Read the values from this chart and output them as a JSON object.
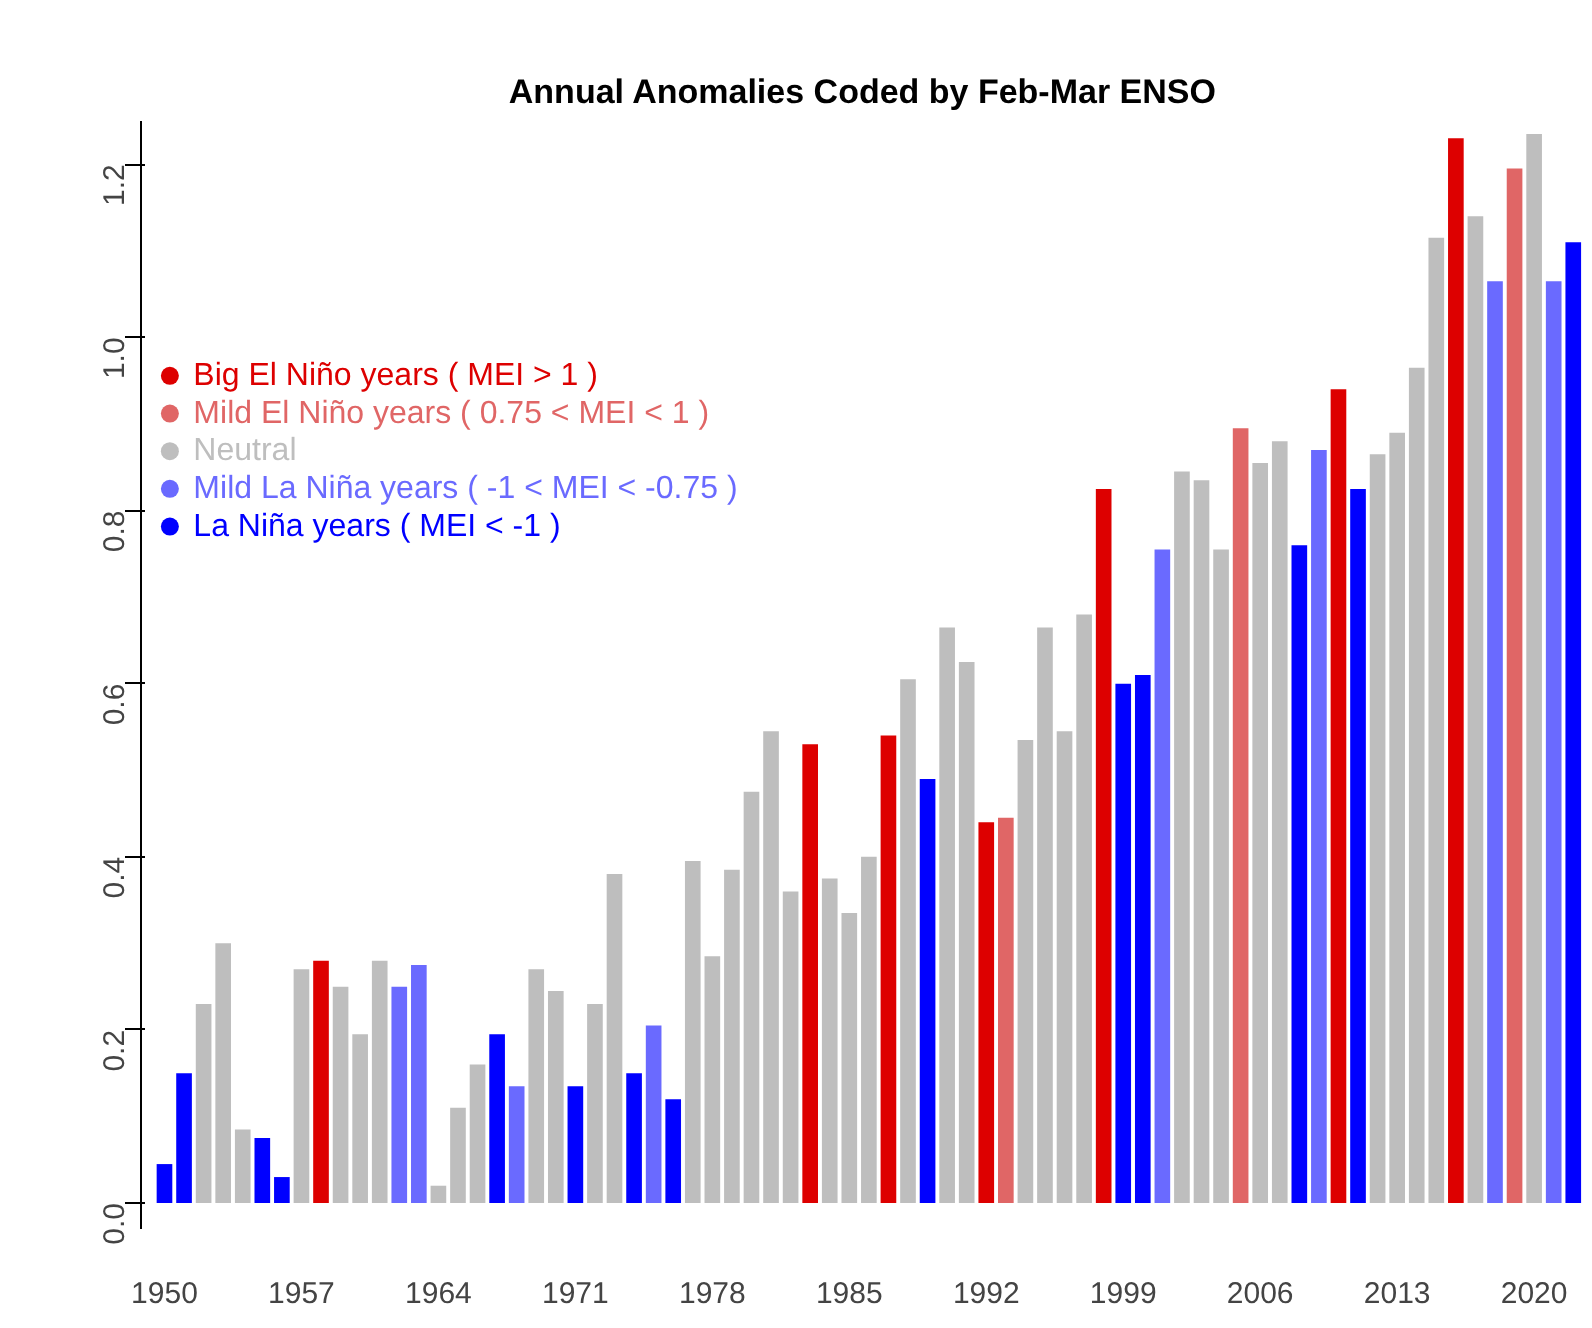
{
  "chart_data": {
    "type": "bar",
    "title": "Annual Anomalies Coded by Feb-Mar ENSO",
    "x": [
      1950,
      1951,
      1952,
      1953,
      1954,
      1955,
      1956,
      1957,
      1958,
      1959,
      1960,
      1961,
      1962,
      1963,
      1964,
      1965,
      1966,
      1967,
      1968,
      1969,
      1970,
      1971,
      1972,
      1973,
      1974,
      1975,
      1976,
      1977,
      1978,
      1979,
      1980,
      1981,
      1982,
      1983,
      1984,
      1985,
      1986,
      1987,
      1988,
      1989,
      1990,
      1991,
      1992,
      1993,
      1994,
      1995,
      1996,
      1997,
      1998,
      1999,
      2000,
      2001,
      2002,
      2003,
      2004,
      2005,
      2006,
      2007,
      2008,
      2009,
      2010,
      2011,
      2012,
      2013,
      2014,
      2015,
      2016,
      2017,
      2018,
      2019,
      2020,
      2021,
      2022
    ],
    "xlim": [
      1948.8,
      2022.6
    ],
    "xticks": [
      1950,
      1957,
      1964,
      1971,
      1978,
      1985,
      1992,
      1999,
      2006,
      2013,
      2020
    ],
    "ylim": [
      -0.03,
      1.25
    ],
    "yticks": [
      {
        "value": 0,
        "label": "0.0"
      },
      0.2,
      0.4,
      0.6,
      0.8,
      {
        "value": 1,
        "label": "1.0"
      },
      1.2
    ],
    "grid": false,
    "legend": "left",
    "series": [
      {
        "name": "Big El Niño years ( MEI > 1 )",
        "color": "#dd0000",
        "values": [
          null,
          null,
          null,
          null,
          null,
          null,
          null,
          null,
          0.28,
          null,
          null,
          null,
          null,
          null,
          null,
          null,
          null,
          null,
          null,
          null,
          null,
          null,
          null,
          null,
          null,
          null,
          null,
          null,
          null,
          null,
          null,
          null,
          null,
          0.53,
          null,
          null,
          null,
          0.54,
          null,
          null,
          null,
          null,
          0.44,
          null,
          null,
          null,
          null,
          null,
          0.825,
          null,
          null,
          null,
          null,
          null,
          null,
          null,
          null,
          null,
          null,
          null,
          0.94,
          null,
          null,
          null,
          null,
          null,
          1.23,
          null,
          null,
          null,
          null,
          null,
          null
        ]
      },
      {
        "name": "Mild El Niño years ( 0.75 < MEI < 1 )",
        "color": "#e06666",
        "values": [
          null,
          null,
          null,
          null,
          null,
          null,
          null,
          null,
          null,
          null,
          null,
          null,
          null,
          null,
          null,
          null,
          null,
          null,
          null,
          null,
          null,
          null,
          null,
          null,
          null,
          null,
          null,
          null,
          null,
          null,
          null,
          null,
          null,
          null,
          null,
          null,
          null,
          null,
          null,
          null,
          null,
          null,
          null,
          0.445,
          null,
          null,
          null,
          null,
          null,
          null,
          null,
          null,
          null,
          null,
          null,
          0.895,
          null,
          null,
          null,
          null,
          null,
          null,
          null,
          null,
          null,
          null,
          null,
          null,
          null,
          1.195,
          null,
          null,
          null
        ]
      },
      {
        "name": "Neutral",
        "color": "#bebebe",
        "values": [
          null,
          null,
          0.23,
          0.3,
          0.085,
          null,
          null,
          0.27,
          null,
          0.25,
          0.195,
          0.28,
          null,
          null,
          0.02,
          0.11,
          0.16,
          null,
          null,
          0.27,
          0.245,
          null,
          0.23,
          0.38,
          null,
          null,
          null,
          0.395,
          0.285,
          0.385,
          0.475,
          0.545,
          0.36,
          null,
          0.375,
          0.335,
          0.4,
          null,
          0.605,
          null,
          0.665,
          0.625,
          null,
          null,
          0.535,
          0.665,
          0.545,
          0.68,
          null,
          null,
          null,
          null,
          0.845,
          0.835,
          0.755,
          null,
          0.855,
          0.88,
          null,
          null,
          null,
          null,
          0.865,
          0.89,
          0.965,
          1.115,
          null,
          1.14,
          null,
          null,
          1.235,
          null,
          null
        ]
      },
      {
        "name": "Mild La Niña years ( -1 < MEI < -0.75 )",
        "color": "#6a6aff",
        "values": [
          null,
          null,
          null,
          null,
          null,
          null,
          null,
          null,
          null,
          null,
          null,
          null,
          0.25,
          0.275,
          null,
          null,
          null,
          null,
          0.135,
          null,
          null,
          null,
          null,
          null,
          null,
          0.205,
          null,
          null,
          null,
          null,
          null,
          null,
          null,
          null,
          null,
          null,
          null,
          null,
          null,
          null,
          null,
          null,
          null,
          null,
          null,
          null,
          null,
          null,
          null,
          null,
          null,
          0.755,
          null,
          null,
          null,
          null,
          null,
          null,
          null,
          0.87,
          null,
          null,
          null,
          null,
          null,
          null,
          null,
          null,
          1.065,
          null,
          null,
          1.065,
          null
        ]
      },
      {
        "name": "La Niña years ( MEI < -1 )",
        "color": "#0000ff",
        "values": [
          0.045,
          0.15,
          null,
          null,
          null,
          0.075,
          0.03,
          null,
          null,
          null,
          null,
          null,
          null,
          null,
          null,
          null,
          null,
          0.195,
          null,
          null,
          null,
          0.135,
          null,
          null,
          0.15,
          null,
          0.12,
          null,
          null,
          null,
          null,
          null,
          null,
          null,
          null,
          null,
          null,
          null,
          null,
          0.49,
          null,
          null,
          null,
          null,
          null,
          null,
          null,
          null,
          null,
          0.6,
          0.61,
          null,
          null,
          null,
          null,
          null,
          null,
          null,
          0.76,
          null,
          null,
          0.825,
          null,
          null,
          null,
          null,
          null,
          null,
          null,
          null,
          null,
          null,
          1.11
        ]
      }
    ]
  }
}
